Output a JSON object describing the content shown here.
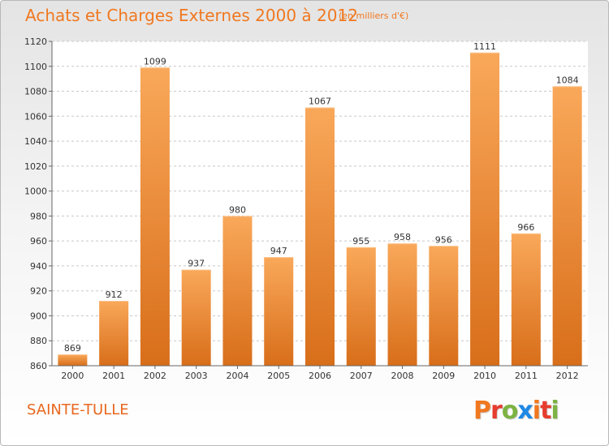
{
  "header": {
    "title": "Achats et Charges Externes 2000 à 2012",
    "subtitle": "(en milliers d'€)"
  },
  "footer": {
    "city": "SAINTE-TULLE",
    "logo": {
      "text": "Proxiti",
      "letters": [
        "P",
        "r",
        "o",
        "x",
        "i",
        "t",
        "i"
      ],
      "colors": [
        "#f07820",
        "#e63c2e",
        "#7cb342",
        "#1e88e5",
        "#f07820",
        "#e63c2e",
        "#7cb342"
      ]
    }
  },
  "colors": {
    "bar_light": "#f9a85a",
    "bar_dark": "#d86e1a",
    "accent": "#f07820"
  },
  "chart_data": {
    "type": "bar",
    "title": "Achats et Charges Externes 2000 à 2012",
    "subtitle": "(en milliers d'€)",
    "categories": [
      "2000",
      "2001",
      "2002",
      "2003",
      "2004",
      "2005",
      "2006",
      "2007",
      "2008",
      "2009",
      "2010",
      "2011",
      "2012"
    ],
    "values": [
      869,
      912,
      1099,
      937,
      980,
      947,
      1067,
      955,
      958,
      956,
      1111,
      966,
      1084
    ],
    "ylim": [
      860,
      1120
    ],
    "yticks": [
      860,
      880,
      900,
      920,
      940,
      960,
      980,
      1000,
      1020,
      1040,
      1060,
      1080,
      1100,
      1120
    ],
    "grid": "horizontal-dashed",
    "legend": "none"
  }
}
